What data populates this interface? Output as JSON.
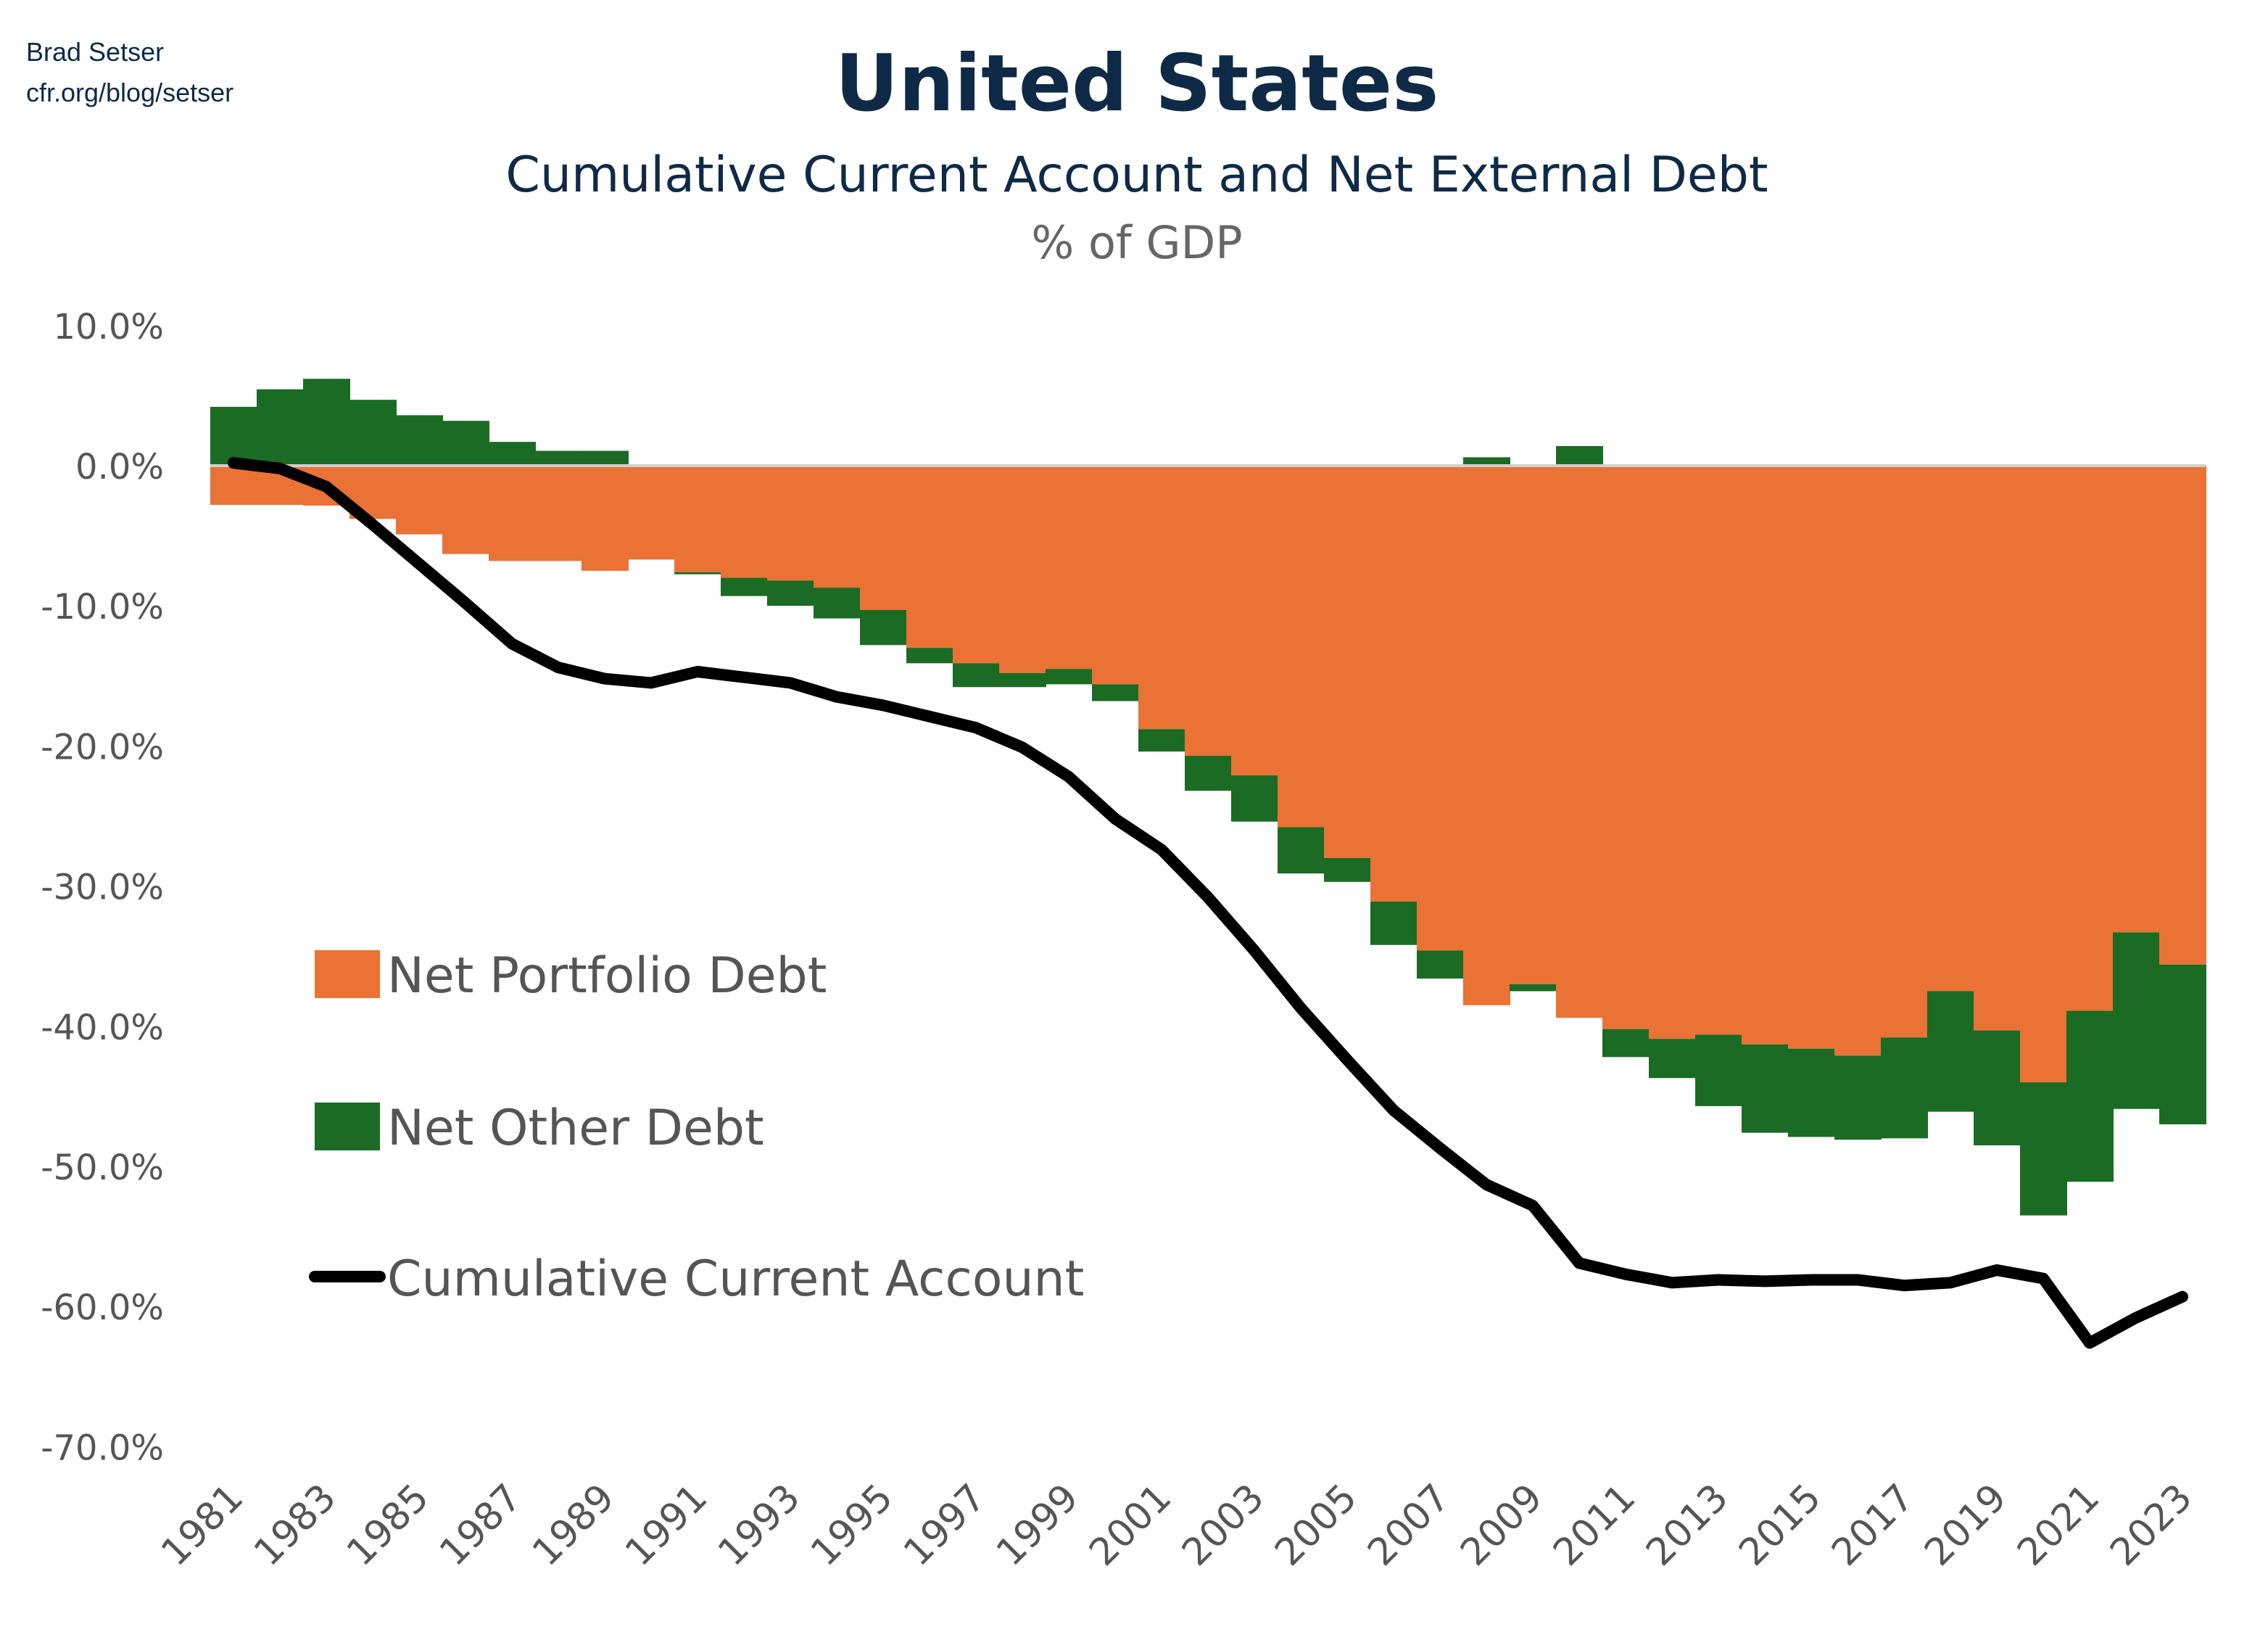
{
  "source": {
    "author": "Brad Setser",
    "site": "cfr.org/blog/setser"
  },
  "chart_data": {
    "type": "bar",
    "stacked": true,
    "title": "United States",
    "subtitle": "Cumulative Current Account and Net External Debt",
    "unit_label": "% of GDP",
    "xlabel": "",
    "ylabel": "",
    "ylim": [
      -70,
      10
    ],
    "yticks": [
      "10.0%",
      "0.0%",
      "-10.0%",
      "-20.0%",
      "-30.0%",
      "-40.0%",
      "-50.0%",
      "-60.0%",
      "-70.0%"
    ],
    "ytick_values": [
      10,
      0,
      -10,
      -20,
      -30,
      -40,
      -50,
      -60,
      -70
    ],
    "grid": false,
    "legend_position": "left-middle",
    "categories": [
      1981,
      1982,
      1983,
      1984,
      1985,
      1986,
      1987,
      1988,
      1989,
      1990,
      1991,
      1992,
      1993,
      1994,
      1995,
      1996,
      1997,
      1998,
      1999,
      2000,
      2001,
      2002,
      2003,
      2004,
      2005,
      2006,
      2007,
      2008,
      2009,
      2010,
      2011,
      2012,
      2013,
      2014,
      2015,
      2016,
      2017,
      2018,
      2019,
      2020,
      2021,
      2022,
      2023
    ],
    "xtick_labels": [
      "1981",
      "1983",
      "1985",
      "1987",
      "1989",
      "1991",
      "1993",
      "1995",
      "1997",
      "1999",
      "2001",
      "2003",
      "2005",
      "2007",
      "2009",
      "2011",
      "2013",
      "2015",
      "2017",
      "2019",
      "2021",
      "2023"
    ],
    "series": [
      {
        "name": "Net Portfolio Debt",
        "kind": "bar",
        "color": "#e97234",
        "values": [
          -2.8,
          -2.8,
          -2.85,
          -3.8,
          -4.9,
          -6.3,
          -6.8,
          -6.8,
          -7.5,
          -6.7,
          -7.6,
          -8.0,
          -8.2,
          -8.7,
          -10.3,
          -13.0,
          -14.1,
          -14.8,
          -14.5,
          -15.6,
          -18.8,
          -20.7,
          -22.1,
          -25.8,
          -28.0,
          -31.1,
          -34.6,
          -38.5,
          -37.0,
          -39.4,
          -40.2,
          -40.9,
          -40.6,
          -41.3,
          -41.6,
          -42.1,
          -40.8,
          -37.5,
          -40.3,
          -44.0,
          -38.9,
          -33.3,
          -35.6
        ]
      },
      {
        "name": "Net Other Debt",
        "kind": "bar",
        "color": "#1b6b24",
        "values": [
          4.2,
          5.45,
          6.2,
          4.7,
          3.6,
          3.2,
          1.7,
          1.06,
          1.06,
          0,
          -0.15,
          -1.3,
          -1.8,
          -2.2,
          -2.5,
          -1.1,
          -1.7,
          -1.0,
          -1.1,
          -1.2,
          -1.6,
          -2.5,
          -3.3,
          -3.3,
          -1.7,
          -3.1,
          -2.0,
          0.6,
          -0.5,
          1.4,
          -2.0,
          -2.8,
          -5.1,
          -6.3,
          -6.3,
          -6.0,
          -7.2,
          -8.6,
          -8.2,
          -9.5,
          -12.2,
          -12.6,
          -11.4
        ]
      },
      {
        "name": "Cumulative Current Account",
        "kind": "line",
        "color": "#000000",
        "values": [
          0.2,
          -0.2,
          -1.5,
          -4.2,
          -7.0,
          -9.8,
          -12.7,
          -14.4,
          -15.2,
          -15.5,
          -14.7,
          -15.1,
          -15.5,
          -16.5,
          -17.1,
          -17.9,
          -18.7,
          -20.1,
          -22.2,
          -25.2,
          -27.4,
          -30.8,
          -34.6,
          -38.7,
          -42.4,
          -46.0,
          -48.7,
          -51.3,
          -52.8,
          -56.9,
          -57.7,
          -58.3,
          -58.1,
          -58.2,
          -58.1,
          -58.1,
          -58.5,
          -58.3,
          -57.4,
          -58.0,
          -62.6,
          -60.8,
          -59.3
        ]
      }
    ]
  }
}
